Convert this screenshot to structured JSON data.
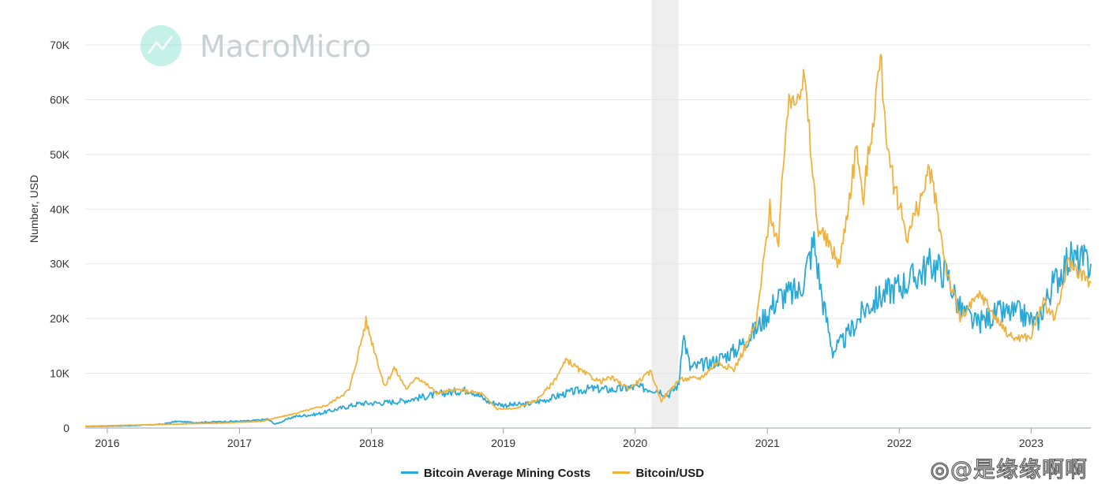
{
  "watermark": {
    "text": "MacroMicro",
    "icon": "line-chart-icon",
    "color": "#5dd6c0"
  },
  "social_watermark": {
    "text": "@是缘缘啊啊",
    "icon": "weibo-icon"
  },
  "chart_data": {
    "type": "line",
    "title": "",
    "xlabel": "",
    "ylabel": "Number, USD",
    "ylim": [
      0,
      70000
    ],
    "xlim": [
      "2015-11-01",
      "2023-06-15"
    ],
    "y_ticks": [
      0,
      10000,
      20000,
      30000,
      40000,
      50000,
      60000,
      70000
    ],
    "y_tick_labels": [
      "0",
      "10K",
      "20K",
      "30K",
      "40K",
      "50K",
      "60K",
      "70K"
    ],
    "x_ticks": [
      "2016-01-01",
      "2017-01-01",
      "2018-01-01",
      "2019-01-01",
      "2020-01-01",
      "2021-01-01",
      "2022-01-01",
      "2023-01-01"
    ],
    "x_tick_labels": [
      "2016",
      "2017",
      "2018",
      "2019",
      "2020",
      "2021",
      "2022",
      "2023"
    ],
    "grid": true,
    "legend_position": "bottom-center",
    "shaded_period": {
      "start": "2020-02-15",
      "end": "2020-04-30",
      "color": "#eeeeee"
    },
    "series": [
      {
        "name": "Bitcoin Average Mining Costs",
        "color": "#2aa8d6",
        "points": [
          [
            "2015-11-01",
            300
          ],
          [
            "2016-03-01",
            400
          ],
          [
            "2016-06-01",
            700
          ],
          [
            "2016-07-10",
            1200
          ],
          [
            "2016-09-01",
            1000
          ],
          [
            "2016-12-01",
            1200
          ],
          [
            "2017-02-01",
            1300
          ],
          [
            "2017-03-20",
            1600
          ],
          [
            "2017-04-10",
            700
          ],
          [
            "2017-06-01",
            2100
          ],
          [
            "2017-08-01",
            2500
          ],
          [
            "2017-10-01",
            3500
          ],
          [
            "2017-12-01",
            4500
          ],
          [
            "2018-02-01",
            4600
          ],
          [
            "2018-04-01",
            5000
          ],
          [
            "2018-06-01",
            5800
          ],
          [
            "2018-08-01",
            6500
          ],
          [
            "2018-10-01",
            7000
          ],
          [
            "2018-11-20",
            4800
          ],
          [
            "2019-01-01",
            4200
          ],
          [
            "2019-03-01",
            4300
          ],
          [
            "2019-05-01",
            5200
          ],
          [
            "2019-07-01",
            6500
          ],
          [
            "2019-09-01",
            7200
          ],
          [
            "2019-11-01",
            7000
          ],
          [
            "2020-01-01",
            7500
          ],
          [
            "2020-03-01",
            7000
          ],
          [
            "2020-04-01",
            6000
          ],
          [
            "2020-05-01",
            8000
          ],
          [
            "2020-05-12",
            17500
          ],
          [
            "2020-06-01",
            11000
          ],
          [
            "2020-08-01",
            12000
          ],
          [
            "2020-10-01",
            14000
          ],
          [
            "2020-12-01",
            18000
          ],
          [
            "2021-02-01",
            24000
          ],
          [
            "2021-04-01",
            25000
          ],
          [
            "2021-05-10",
            34000
          ],
          [
            "2021-06-01",
            24000
          ],
          [
            "2021-07-01",
            14000
          ],
          [
            "2021-08-01",
            16000
          ],
          [
            "2021-10-01",
            22000
          ],
          [
            "2021-12-01",
            25000
          ],
          [
            "2022-02-01",
            27000
          ],
          [
            "2022-04-01",
            30000
          ],
          [
            "2022-05-15",
            28000
          ],
          [
            "2022-06-15",
            22000
          ],
          [
            "2022-08-01",
            19000
          ],
          [
            "2022-10-01",
            21000
          ],
          [
            "2022-12-01",
            21000
          ],
          [
            "2023-01-15",
            19000
          ],
          [
            "2023-03-01",
            26000
          ],
          [
            "2023-04-15",
            31000
          ],
          [
            "2023-06-15",
            30000
          ]
        ]
      },
      {
        "name": "Bitcoin/USD",
        "color": "#f0b23c",
        "points": [
          [
            "2015-11-01",
            350
          ],
          [
            "2016-06-01",
            650
          ],
          [
            "2016-12-01",
            950
          ],
          [
            "2017-03-01",
            1200
          ],
          [
            "2017-06-01",
            2600
          ],
          [
            "2017-09-01",
            4200
          ],
          [
            "2017-11-01",
            7000
          ],
          [
            "2017-12-17",
            19500
          ],
          [
            "2018-01-15",
            13000
          ],
          [
            "2018-02-06",
            7500
          ],
          [
            "2018-03-05",
            11000
          ],
          [
            "2018-04-10",
            7000
          ],
          [
            "2018-05-05",
            9500
          ],
          [
            "2018-07-01",
            6400
          ],
          [
            "2018-09-01",
            7000
          ],
          [
            "2018-11-01",
            6300
          ],
          [
            "2018-12-15",
            3500
          ],
          [
            "2019-02-01",
            3500
          ],
          [
            "2019-04-01",
            5000
          ],
          [
            "2019-05-15",
            8000
          ],
          [
            "2019-06-26",
            12500
          ],
          [
            "2019-08-01",
            10500
          ],
          [
            "2019-09-25",
            8500
          ],
          [
            "2019-10-26",
            9200
          ],
          [
            "2019-12-15",
            7200
          ],
          [
            "2020-02-14",
            10300
          ],
          [
            "2020-03-13",
            5000
          ],
          [
            "2020-05-01",
            8800
          ],
          [
            "2020-07-01",
            9200
          ],
          [
            "2020-08-15",
            12000
          ],
          [
            "2020-10-01",
            10700
          ],
          [
            "2020-12-01",
            19000
          ],
          [
            "2021-01-08",
            40000
          ],
          [
            "2021-02-01",
            33000
          ],
          [
            "2021-02-21",
            56000
          ],
          [
            "2021-03-13",
            61000
          ],
          [
            "2021-04-14",
            63500
          ],
          [
            "2021-05-19",
            37000
          ],
          [
            "2021-07-20",
            30000
          ],
          [
            "2021-09-06",
            52000
          ],
          [
            "2021-09-21",
            41000
          ],
          [
            "2021-11-10",
            67500
          ],
          [
            "2021-12-04",
            48000
          ],
          [
            "2022-01-24",
            35000
          ],
          [
            "2022-03-28",
            47000
          ],
          [
            "2022-05-12",
            29000
          ],
          [
            "2022-06-18",
            20000
          ],
          [
            "2022-08-14",
            24500
          ],
          [
            "2022-10-01",
            19500
          ],
          [
            "2022-11-09",
            16500
          ],
          [
            "2022-12-31",
            16600
          ],
          [
            "2023-02-01",
            23000
          ],
          [
            "2023-03-10",
            20000
          ],
          [
            "2023-04-14",
            30500
          ],
          [
            "2023-06-15",
            26500
          ]
        ]
      }
    ]
  }
}
